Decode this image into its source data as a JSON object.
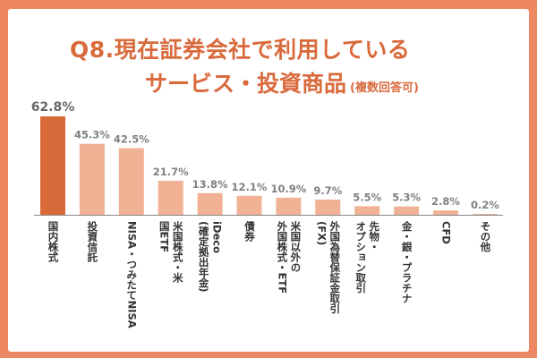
{
  "title": {
    "line1": "Q8.現在証券会社で利用している",
    "line2": "サービス・投資商品",
    "note": "(複数回答可)"
  },
  "colors": {
    "background": "#EE8862",
    "highlight_bar": "#D86A3A",
    "bar": "#F0B194",
    "title": "#D96A3C",
    "value_label": "#808080"
  },
  "chart_data": {
    "type": "bar",
    "categories": [
      "国内株式",
      "投資信託",
      "NISA・つみたてNISA",
      "米国株式・米\n国ETF",
      "iDeco\n(確定拠出年金)",
      "債券",
      "米国以外の\n外国株式・ETF",
      "外国為替保証金取引\n(FX)",
      "先物・\nオプション取引",
      "金・銀・プラチナ",
      "CFD",
      "その他"
    ],
    "values": [
      62.8,
      45.3,
      42.5,
      21.7,
      13.8,
      12.1,
      10.9,
      9.7,
      5.5,
      5.3,
      2.8,
      0.2
    ],
    "data_labels": [
      "62.8%",
      "45.3%",
      "42.5%",
      "21.7%",
      "13.8%",
      "12.1%",
      "10.9%",
      "9.7%",
      "5.5%",
      "5.3%",
      "2.8%",
      "0.2%"
    ],
    "unit": "%",
    "ylim": [
      0,
      65
    ],
    "grid": false,
    "legend": "none"
  }
}
